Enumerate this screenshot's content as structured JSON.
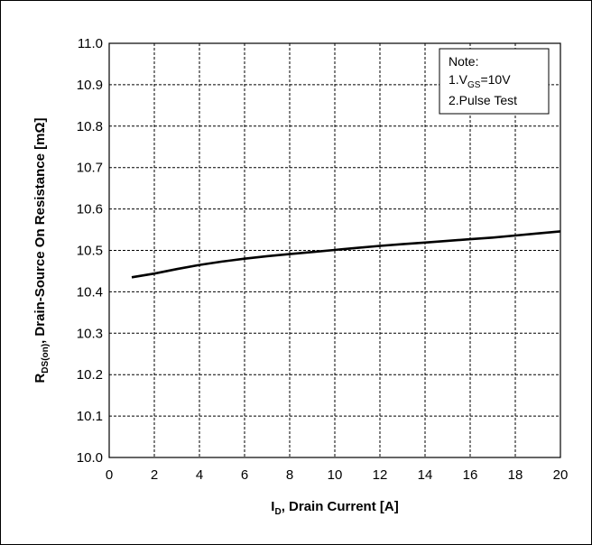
{
  "chart_data": {
    "type": "line",
    "x_axis": {
      "label_main": "I",
      "label_sub": "D",
      "label_rest": ", Drain Current [A]",
      "range": [
        0,
        20
      ],
      "ticks": [
        0,
        2,
        4,
        6,
        8,
        10,
        12,
        14,
        16,
        18,
        20
      ],
      "tick_labels": [
        "0",
        "2",
        "4",
        "6",
        "8",
        "10",
        "12",
        "14",
        "16",
        "18",
        "20"
      ]
    },
    "y_axis": {
      "label_main": "R",
      "label_sub": "DS(on)",
      "label_rest": ", Drain-Source On Resistance [mΩ]",
      "range": [
        10.0,
        11.0
      ],
      "ticks": [
        10.0,
        10.1,
        10.2,
        10.3,
        10.4,
        10.5,
        10.6,
        10.7,
        10.8,
        10.9,
        11.0
      ],
      "tick_labels": [
        "10.0",
        "10.1",
        "10.2",
        "10.3",
        "10.4",
        "10.5",
        "10.6",
        "10.7",
        "10.8",
        "10.9",
        "11.0"
      ]
    },
    "grid": true,
    "series": [
      {
        "x": [
          1,
          2,
          3,
          4,
          5,
          6,
          7,
          8,
          9,
          10,
          11,
          12,
          13,
          14,
          15,
          16,
          17,
          18,
          19,
          20
        ],
        "y": [
          10.435,
          10.444,
          10.455,
          10.465,
          10.473,
          10.48,
          10.486,
          10.491,
          10.496,
          10.501,
          10.506,
          10.511,
          10.515,
          10.519,
          10.523,
          10.527,
          10.531,
          10.536,
          10.541,
          10.546
        ],
        "color": "#000000"
      }
    ],
    "note": {
      "title": "Note:",
      "line1_prefix": "1.V",
      "line1_sub": "GS",
      "line1_suffix": "=10V",
      "line2": "2.Pulse Test",
      "placement": "top-right"
    }
  }
}
